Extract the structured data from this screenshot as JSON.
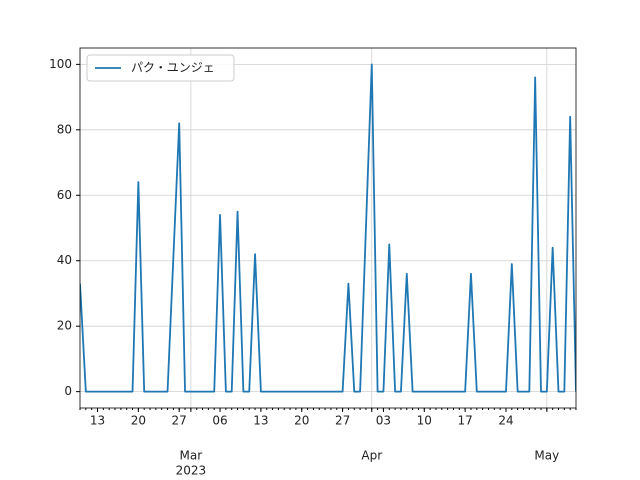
{
  "chart_data": {
    "type": "line",
    "x": [
      "2023-02-10",
      "2023-02-11",
      "2023-02-12",
      "2023-02-13",
      "2023-02-14",
      "2023-02-15",
      "2023-02-16",
      "2023-02-17",
      "2023-02-18",
      "2023-02-19",
      "2023-02-20",
      "2023-02-21",
      "2023-02-22",
      "2023-02-23",
      "2023-02-24",
      "2023-02-25",
      "2023-02-26",
      "2023-02-27",
      "2023-02-28",
      "2023-03-01",
      "2023-03-02",
      "2023-03-03",
      "2023-03-04",
      "2023-03-05",
      "2023-03-06",
      "2023-03-07",
      "2023-03-08",
      "2023-03-09",
      "2023-03-10",
      "2023-03-11",
      "2023-03-12",
      "2023-03-13",
      "2023-03-14",
      "2023-03-15",
      "2023-03-16",
      "2023-03-17",
      "2023-03-18",
      "2023-03-19",
      "2023-03-20",
      "2023-03-21",
      "2023-03-22",
      "2023-03-23",
      "2023-03-24",
      "2023-03-25",
      "2023-03-26",
      "2023-03-27",
      "2023-03-28",
      "2023-03-29",
      "2023-03-30",
      "2023-03-31",
      "2023-04-01",
      "2023-04-02",
      "2023-04-03",
      "2023-04-04",
      "2023-04-05",
      "2023-04-06",
      "2023-04-07",
      "2023-04-08",
      "2023-04-09",
      "2023-04-10",
      "2023-04-11",
      "2023-04-12",
      "2023-04-13",
      "2023-04-14",
      "2023-04-15",
      "2023-04-16",
      "2023-04-17",
      "2023-04-18",
      "2023-04-19",
      "2023-04-20",
      "2023-04-21",
      "2023-04-22",
      "2023-04-23",
      "2023-04-24",
      "2023-04-25",
      "2023-04-26",
      "2023-04-27",
      "2023-04-28",
      "2023-04-29",
      "2023-04-30",
      "2023-05-01",
      "2023-05-02",
      "2023-05-03",
      "2023-05-04",
      "2023-05-05",
      "2023-05-06"
    ],
    "series": [
      {
        "name": "パク・ユンジェ",
        "color": "#1f77b4",
        "values": [
          33,
          0,
          0,
          0,
          0,
          0,
          0,
          0,
          0,
          0,
          64,
          0,
          0,
          0,
          0,
          0,
          41,
          82,
          0,
          0,
          0,
          0,
          0,
          0,
          54,
          0,
          0,
          55,
          0,
          0,
          42,
          0,
          0,
          0,
          0,
          0,
          0,
          0,
          0,
          0,
          0,
          0,
          0,
          0,
          0,
          0,
          33,
          0,
          0,
          50,
          100,
          0,
          0,
          45,
          0,
          0,
          36,
          0,
          0,
          0,
          0,
          0,
          0,
          0,
          0,
          0,
          0,
          36,
          0,
          0,
          0,
          0,
          0,
          0,
          39,
          0,
          0,
          0,
          96,
          0,
          0,
          44,
          0,
          0,
          84,
          0
        ]
      }
    ],
    "xlim": [
      "2023-02-10",
      "2023-05-06"
    ],
    "ylim": [
      -5,
      105
    ],
    "yticks": [
      0,
      20,
      40,
      60,
      80,
      100
    ],
    "xticks": [
      {
        "value": "2023-02-13",
        "label": "13"
      },
      {
        "value": "2023-02-20",
        "label": "20"
      },
      {
        "value": "2023-02-27",
        "label": "27"
      },
      {
        "value": "2023-03-06",
        "label": "06"
      },
      {
        "value": "2023-03-13",
        "label": "13"
      },
      {
        "value": "2023-03-20",
        "label": "20"
      },
      {
        "value": "2023-03-27",
        "label": "27"
      },
      {
        "value": "2023-04-03",
        "label": "03"
      },
      {
        "value": "2023-04-10",
        "label": "10"
      },
      {
        "value": "2023-04-17",
        "label": "17"
      },
      {
        "value": "2023-04-24",
        "label": "24"
      }
    ],
    "month_ticks": [
      {
        "value": "2023-03-01",
        "label": "Mar",
        "year": "2023"
      },
      {
        "value": "2023-04-01",
        "label": "Apr"
      },
      {
        "value": "2023-05-01",
        "label": "May"
      }
    ],
    "grid": true,
    "legend": "upper left"
  }
}
